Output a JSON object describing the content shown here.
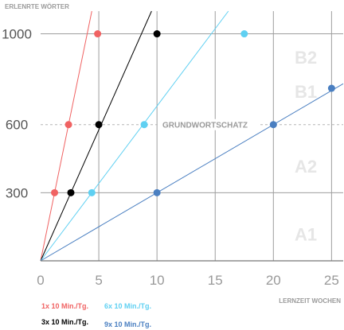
{
  "chart_data": {
    "type": "line",
    "ylabel": "ERLENRTE WÖRTER",
    "xlabel": "LERNZEIT WOCHEN",
    "xlim": [
      0,
      26
    ],
    "ylim": [
      0,
      1100
    ],
    "x_ticks": [
      0,
      5,
      10,
      15,
      20,
      25
    ],
    "y_ticks": [
      300,
      600,
      1000
    ],
    "grid": true,
    "reference_line": {
      "y": 600,
      "label": "GRUNDWORTSCHATZ"
    },
    "level_labels": [
      {
        "text": "A1",
        "y": 120
      },
      {
        "text": "A2",
        "y": 420
      },
      {
        "text": "B1",
        "y": 750
      },
      {
        "text": "B2",
        "y": 900
      }
    ],
    "series": [
      {
        "name": "1x 10 Min./Tg.",
        "color": "#f06262",
        "x": [
          1.2,
          2.4,
          4.9
        ],
        "y": [
          300,
          600,
          1000
        ]
      },
      {
        "name": "3x 10 Min./Tg.",
        "color": "#000000",
        "x": [
          2.6,
          5.0,
          10.0
        ],
        "y": [
          300,
          600,
          1000
        ]
      },
      {
        "name": "6x 10 Min./Tg.",
        "color": "#5fd0f2",
        "x": [
          4.4,
          8.9,
          17.5
        ],
        "y": [
          300,
          600,
          1000
        ]
      },
      {
        "name": "9x 10 Min./Tg.",
        "color": "#4a7fc1",
        "x": [
          10.0,
          20.0,
          25.0
        ],
        "y": [
          300,
          600,
          760
        ]
      }
    ]
  }
}
